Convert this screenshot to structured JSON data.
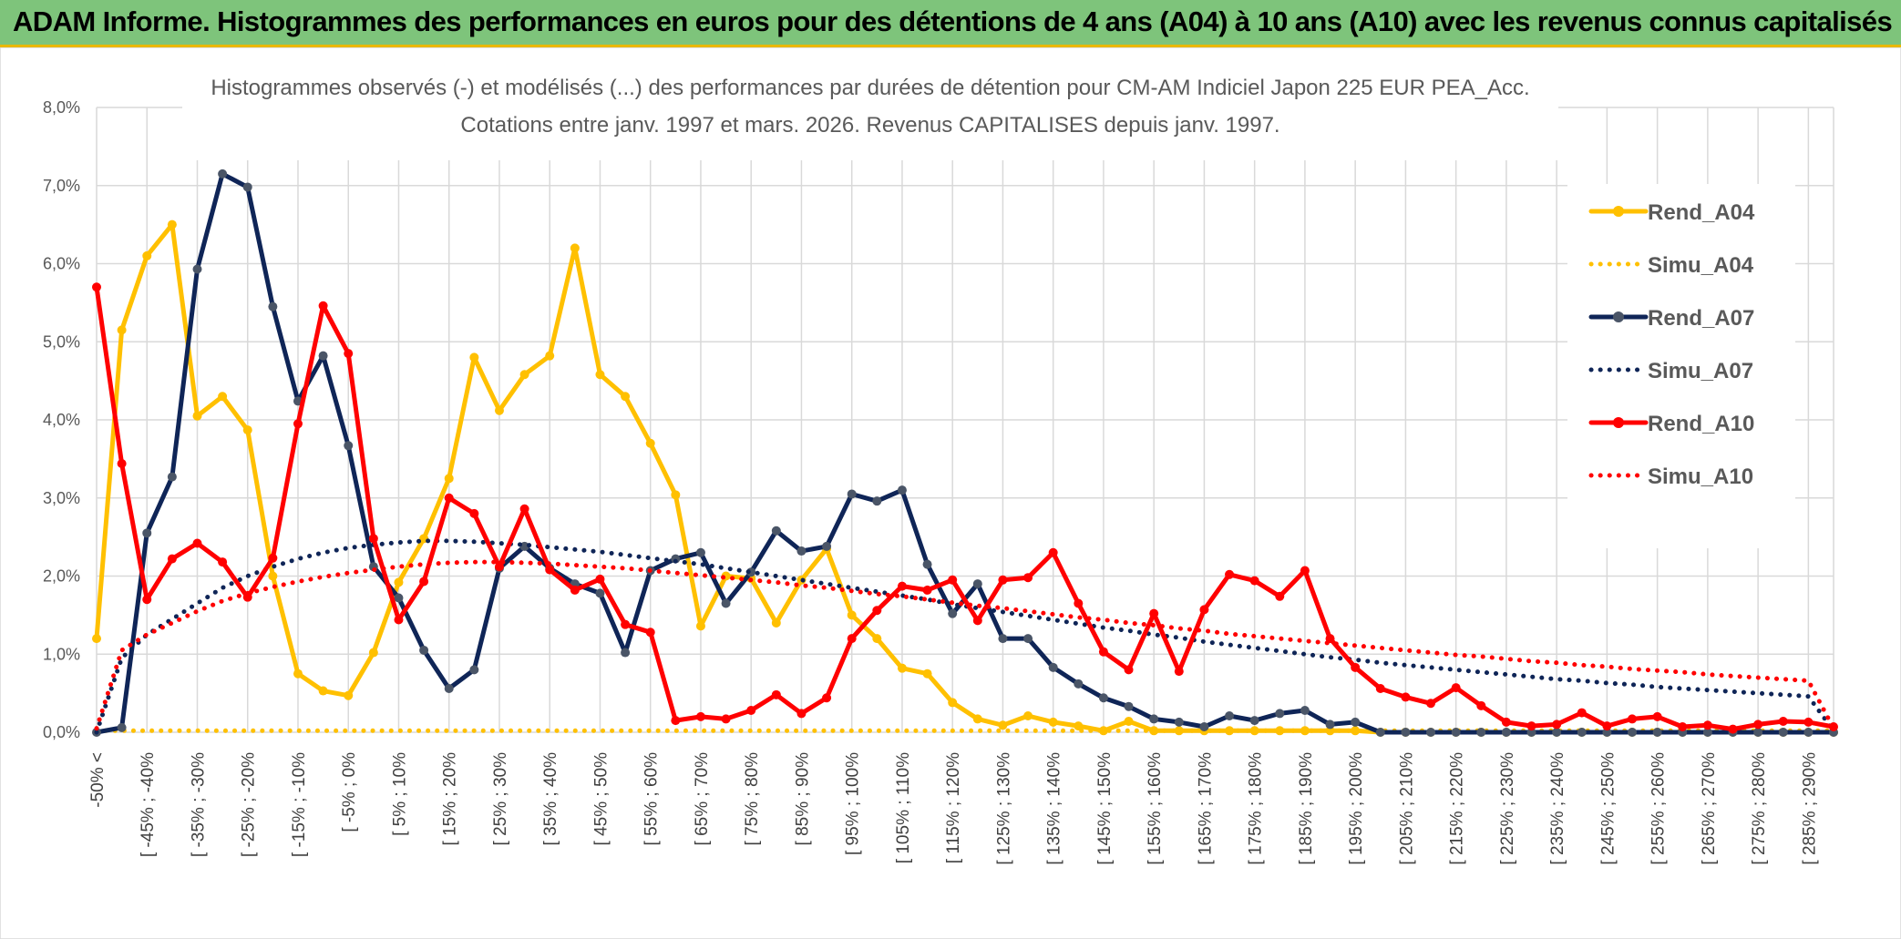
{
  "header": {
    "title": "ADAM Informe. Histogrammes des performances en euros pour des détentions de 4 ans (A04) à 10 ans (A10) avec les revenus connus capitalisés"
  },
  "chart_data": {
    "type": "line",
    "title": "Histogrammes observés (-) et modélisés (...) des performances par durées de détention pour CM-AM Indiciel Japon 225 EUR PEA_Acc.",
    "subtitle": "Cotations entre janv. 1997 et mars. 2026. Revenus CAPITALISES depuis janv. 1997.",
    "xlabel": "",
    "ylabel": "",
    "ylim": [
      0,
      8
    ],
    "yticks": [
      "0,0%",
      "1,0%",
      "2,0%",
      "3,0%",
      "4,0%",
      "5,0%",
      "6,0%",
      "7,0%",
      "8,0%"
    ],
    "grid": true,
    "legend_position": "right",
    "xtick_labels": [
      "-50% <",
      "[ -45% ; -40%",
      "[ -35% ; -30%",
      "[ -25% ; -20%",
      "[ -15% ; -10%",
      "[ -5% ; 0%",
      "[ 5% ; 10%",
      "[ 15% ; 20%",
      "[ 25% ; 30%",
      "[ 35% ; 40%",
      "[ 45% ; 50%",
      "[ 55% ; 60%",
      "[ 65% ; 70%",
      "[ 75% ; 80%",
      "[ 85% ; 90%",
      "[ 95% ; 100%",
      "[ 105% ; 110%",
      "[ 115% ; 120%",
      "[ 125% ; 130%",
      "[ 135% ; 140%",
      "[ 145% ; 150%",
      "[ 155% ; 160%",
      "[ 165% ; 170%",
      "[ 175% ; 180%",
      "[ 185% ; 190%",
      "[ 195% ; 200%",
      "[ 205% ; 210%",
      "[ 215% ; 220%",
      "[ 225% ; 230%",
      "[ 235% ; 240%",
      "[ 245% ; 250%",
      "[ 255% ; 260%",
      "[ 265% ; 270%",
      "[ 275% ; 280%",
      "[ 285% ; 290%"
    ],
    "num_points": 70,
    "series": [
      {
        "name": "Rend_A04",
        "style": "solid",
        "color": "#ffc000",
        "values": [
          1.2,
          5.15,
          6.1,
          6.5,
          4.05,
          4.3,
          3.87,
          2.0,
          0.75,
          0.53,
          0.47,
          1.02,
          1.92,
          2.48,
          3.25,
          4.8,
          4.12,
          4.58,
          4.82,
          6.2,
          4.58,
          4.3,
          3.7,
          3.04,
          1.36,
          2.0,
          1.97,
          1.4,
          1.95,
          2.35,
          1.5,
          1.2,
          0.82,
          0.75,
          0.38,
          0.17,
          0.09,
          0.21,
          0.13,
          0.08,
          0.02,
          0.14,
          0.02,
          0.02,
          0.02,
          0.02,
          0.02,
          0.02,
          0.02,
          0.02,
          0.02,
          0,
          0,
          0,
          0,
          0,
          0,
          0,
          0,
          0,
          0,
          0,
          0,
          0,
          0,
          0,
          0,
          0,
          0,
          0
        ]
      },
      {
        "name": "Simu_A04",
        "style": "dotted",
        "color": "#ffc000",
        "values": [
          0.02,
          0.02,
          0.02,
          0.02,
          0.02,
          0.02,
          0.02,
          0.02,
          0.02,
          0.02,
          0.02,
          0.02,
          0.02,
          0.02,
          0.02,
          0.02,
          0.02,
          0.02,
          0.02,
          0.02,
          0.02,
          0.02,
          0.02,
          0.02,
          0.02,
          0.02,
          0.02,
          0.02,
          0.02,
          0.02,
          0.02,
          0.02,
          0.02,
          0.02,
          0.02,
          0.02,
          0.02,
          0.02,
          0.02,
          0.02,
          0.02,
          0.02,
          0.02,
          0.02,
          0.02,
          0.02,
          0.02,
          0.02,
          0.02,
          0.02,
          0.02,
          0.02,
          0.02,
          0.02,
          0.02,
          0.02,
          0.02,
          0.02,
          0.02,
          0.02,
          0.02,
          0.02,
          0.02,
          0.02,
          0.02,
          0.02,
          0.02,
          0.02,
          0.02,
          0.02
        ]
      },
      {
        "name": "Rend_A07",
        "style": "solid",
        "color": "#0f2557",
        "values": [
          0.0,
          0.06,
          2.55,
          3.27,
          5.93,
          7.15,
          6.98,
          5.45,
          4.24,
          4.82,
          3.67,
          2.12,
          1.72,
          1.05,
          0.56,
          0.8,
          2.1,
          2.38,
          2.1,
          1.9,
          1.78,
          1.02,
          2.07,
          2.22,
          2.3,
          1.65,
          2.05,
          2.58,
          2.32,
          2.38,
          3.05,
          2.96,
          3.1,
          2.15,
          1.52,
          1.9,
          1.2,
          1.2,
          0.83,
          0.62,
          0.44,
          0.33,
          0.17,
          0.13,
          0.07,
          0.21,
          0.15,
          0.24,
          0.28,
          0.1,
          0.13,
          0,
          0,
          0,
          0,
          0,
          0,
          0,
          0,
          0,
          0,
          0,
          0,
          0,
          0,
          0,
          0,
          0,
          0,
          0
        ]
      },
      {
        "name": "Simu_A07",
        "style": "dotted",
        "color": "#0f2557",
        "values": [
          0.0,
          0.95,
          1.25,
          1.45,
          1.65,
          1.85,
          2.0,
          2.12,
          2.22,
          2.3,
          2.36,
          2.4,
          2.43,
          2.45,
          2.45,
          2.44,
          2.42,
          2.4,
          2.37,
          2.34,
          2.31,
          2.27,
          2.23,
          2.19,
          2.15,
          2.1,
          2.05,
          2.0,
          1.95,
          1.9,
          1.85,
          1.8,
          1.75,
          1.7,
          1.64,
          1.59,
          1.54,
          1.49,
          1.44,
          1.39,
          1.34,
          1.3,
          1.25,
          1.21,
          1.16,
          1.12,
          1.08,
          1.04,
          1.0,
          0.96,
          0.93,
          0.89,
          0.86,
          0.83,
          0.8,
          0.77,
          0.74,
          0.71,
          0.68,
          0.66,
          0.63,
          0.61,
          0.58,
          0.56,
          0.54,
          0.52,
          0.5,
          0.48,
          0.46,
          0.02
        ]
      },
      {
        "name": "Rend_A10",
        "style": "solid",
        "color": "#ff0000",
        "values": [
          5.7,
          3.44,
          1.7,
          2.22,
          2.42,
          2.18,
          1.73,
          2.23,
          3.95,
          5.46,
          4.85,
          2.48,
          1.44,
          1.93,
          3.0,
          2.8,
          2.12,
          2.86,
          2.08,
          1.82,
          1.96,
          1.38,
          1.28,
          0.15,
          0.2,
          0.17,
          0.28,
          0.48,
          0.24,
          0.44,
          1.2,
          1.56,
          1.87,
          1.82,
          1.95,
          1.43,
          1.95,
          1.98,
          2.3,
          1.65,
          1.03,
          0.8,
          1.52,
          0.78,
          1.57,
          2.02,
          1.94,
          1.74,
          2.07,
          1.2,
          0.83,
          0.56,
          0.45,
          0.37,
          0.57,
          0.34,
          0.13,
          0.08,
          0.1,
          0.25,
          0.08,
          0.17,
          0.2,
          0.07,
          0.09,
          0.04,
          0.1,
          0.14,
          0.13,
          0.07
        ]
      },
      {
        "name": "Simu_A10",
        "style": "dotted",
        "color": "#ff0000",
        "values": [
          0.05,
          1.05,
          1.25,
          1.4,
          1.55,
          1.68,
          1.78,
          1.86,
          1.93,
          1.99,
          2.04,
          2.08,
          2.12,
          2.15,
          2.17,
          2.18,
          2.18,
          2.17,
          2.16,
          2.14,
          2.12,
          2.1,
          2.07,
          2.04,
          2.01,
          1.98,
          1.95,
          1.92,
          1.88,
          1.85,
          1.81,
          1.77,
          1.74,
          1.7,
          1.66,
          1.62,
          1.59,
          1.55,
          1.51,
          1.47,
          1.44,
          1.4,
          1.37,
          1.33,
          1.3,
          1.26,
          1.23,
          1.2,
          1.17,
          1.14,
          1.11,
          1.08,
          1.05,
          1.02,
          0.99,
          0.97,
          0.94,
          0.91,
          0.89,
          0.86,
          0.84,
          0.81,
          0.79,
          0.77,
          0.74,
          0.72,
          0.7,
          0.68,
          0.66,
          0.05
        ]
      }
    ]
  }
}
